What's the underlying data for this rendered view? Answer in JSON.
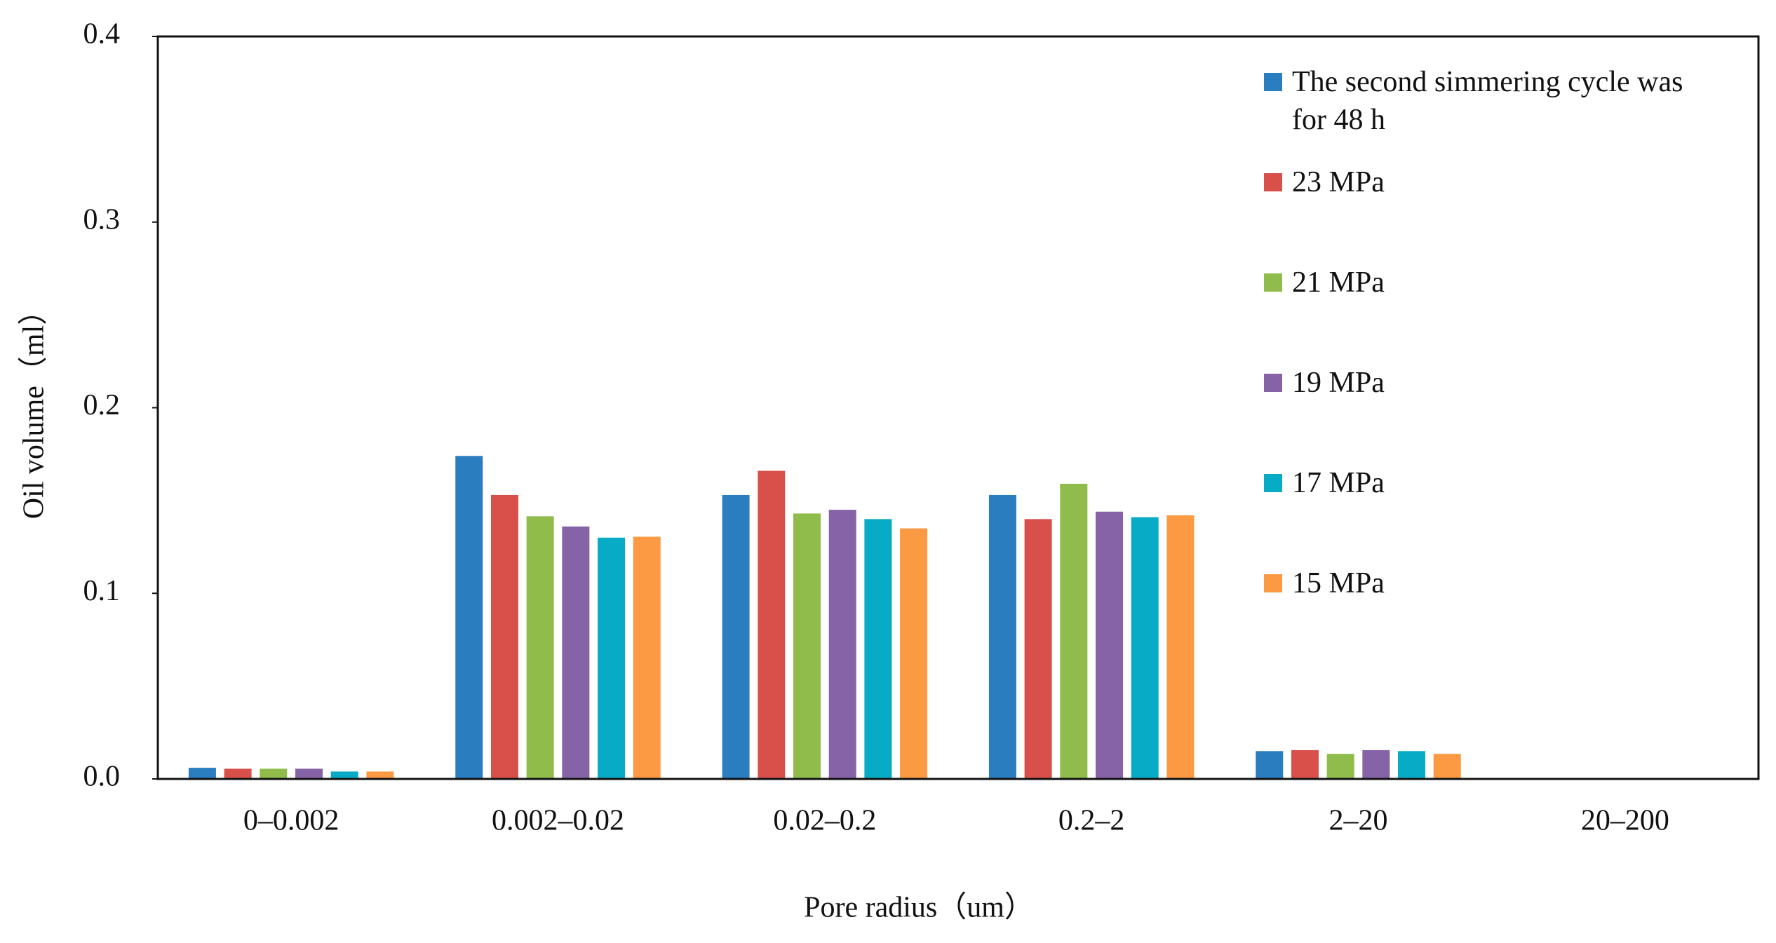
{
  "chart_data": {
    "type": "bar",
    "x_label": "Pore radius（um）",
    "y_label": "Oil volume（ml）",
    "categories": [
      "0–0.002",
      "0.002–0.02",
      "0.02–0.2",
      "0.2–2",
      "2–20",
      "20–200"
    ],
    "series": [
      {
        "name": "The second simmering cycle was for 48 h",
        "color": "#2a7dbe",
        "values": [
          0.006,
          0.174,
          0.153,
          0.153,
          0.015,
          0
        ]
      },
      {
        "name": "23 MPa",
        "color": "#d9504b",
        "values": [
          0.0055,
          0.153,
          0.166,
          0.14,
          0.0155,
          0
        ]
      },
      {
        "name": "21 MPa",
        "color": "#8fbc4b",
        "values": [
          0.0055,
          0.1415,
          0.143,
          0.159,
          0.0135,
          0
        ]
      },
      {
        "name": "19 MPa",
        "color": "#8563a6",
        "values": [
          0.0055,
          0.136,
          0.145,
          0.144,
          0.0155,
          0
        ]
      },
      {
        "name": "17 MPa",
        "color": "#07abc6",
        "values": [
          0.004,
          0.13,
          0.14,
          0.141,
          0.015,
          0
        ]
      },
      {
        "name": "15 MPa",
        "color": "#fb9a43",
        "values": [
          0.004,
          0.1305,
          0.135,
          0.142,
          0.0135,
          0
        ]
      }
    ],
    "ylim": [
      0,
      0.4
    ],
    "yticks": [
      {
        "value": 0,
        "label": "0.0"
      },
      0.1,
      0.2,
      0.3,
      0.4
    ],
    "grid": false,
    "legend": "upper right"
  }
}
